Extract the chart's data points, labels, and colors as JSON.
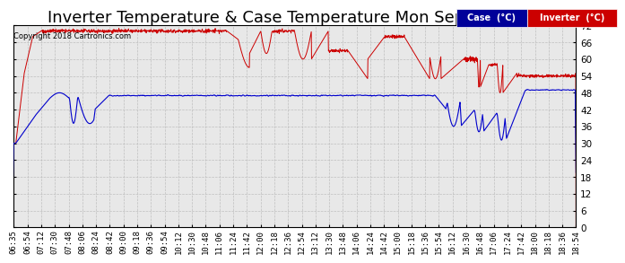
{
  "title": "Inverter Temperature & Case Temperature Mon Sep 17 18:54",
  "copyright": "Copyright 2018 Cartronics.com",
  "ylim": [
    0.0,
    72.0
  ],
  "yticks": [
    0.0,
    6.0,
    12.0,
    18.0,
    24.0,
    30.0,
    36.0,
    42.0,
    48.0,
    54.0,
    60.0,
    66.0,
    72.0
  ],
  "legend_case_label": "Case  (°C)",
  "legend_inverter_label": "Inverter  (°C)",
  "case_color": "#0000cc",
  "inverter_color": "#cc0000",
  "background_color": "#ffffff",
  "plot_bg_color": "#e8e8e8",
  "grid_color": "#bbbbbb",
  "title_fontsize": 13,
  "tick_fontsize": 7.5,
  "legend_case_bg": "#000099",
  "legend_inverter_bg": "#cc0000",
  "total_minutes": 739,
  "num_points": 2000
}
